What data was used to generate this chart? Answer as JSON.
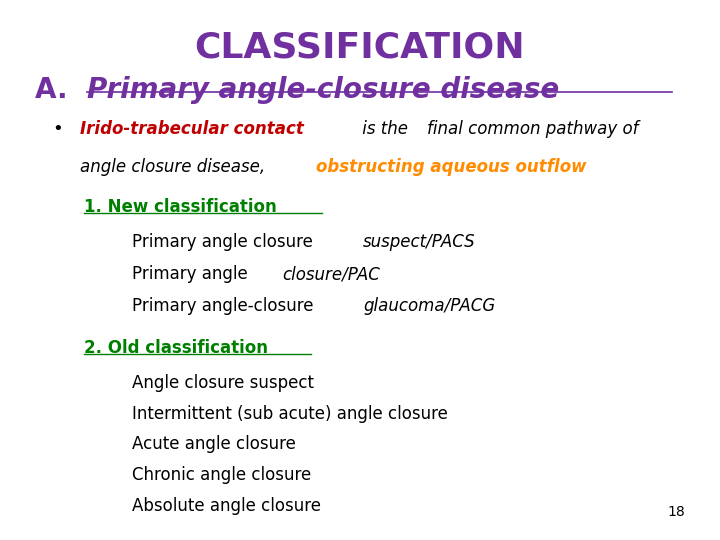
{
  "title": "CLASSIFICATION",
  "title_color": "#7030A0",
  "title_fontsize": 26,
  "background_color": "#FFFFFF",
  "page_number": "18",
  "section_a_prefix": "A. ",
  "section_a_text": "Primary angle-closure disease",
  "section_a_color": "#7030A0",
  "section_a_fontsize": 20,
  "new_class_label": "1. New classification",
  "new_class_color": "#008000",
  "new_class_items": [
    [
      "Primary angle closure ",
      "suspect/PACS"
    ],
    [
      "Primary angle ",
      "closure/PAC"
    ],
    [
      "Primary angle-closure ",
      "glaucoma/PACG"
    ]
  ],
  "old_class_label": "2. Old classification",
  "old_class_color": "#008000",
  "old_class_items": [
    "Angle closure suspect",
    "Intermittent (sub acute) angle closure",
    "Acute angle closure",
    "Chronic angle closure",
    "Absolute angle closure"
  ]
}
